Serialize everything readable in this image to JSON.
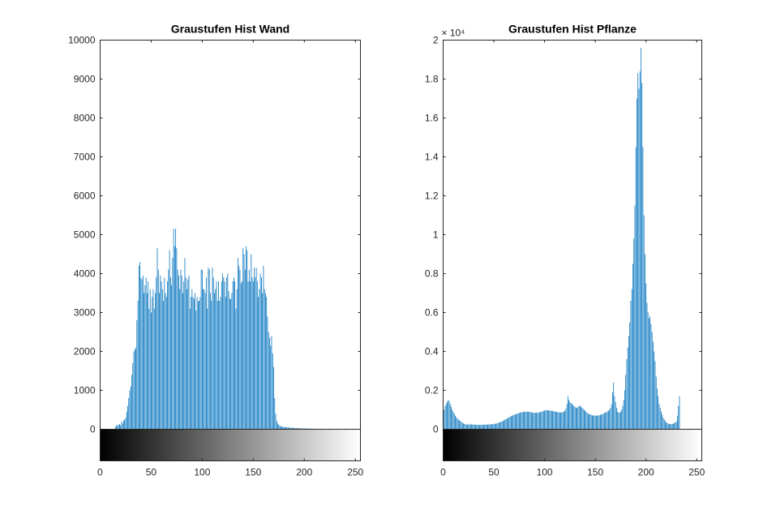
{
  "figure": {
    "background": "#ffffff",
    "bar_color": "#0072BD",
    "axis_color": "#262626"
  },
  "chart_data": [
    {
      "type": "bar",
      "title": "Graustufen Hist Wand",
      "xlabel": "",
      "ylabel": "",
      "xlim": [
        0,
        255
      ],
      "ylim": [
        0,
        10000
      ],
      "x_ticks": [
        0,
        50,
        100,
        150,
        200,
        250
      ],
      "y_ticks": [
        0,
        1000,
        2000,
        3000,
        4000,
        5000,
        6000,
        7000,
        8000,
        9000,
        10000
      ],
      "x_tick_labels": [
        "0",
        "50",
        "100",
        "150",
        "200",
        "250"
      ],
      "y_tick_labels": [
        "0",
        "1000",
        "2000",
        "3000",
        "4000",
        "5000",
        "6000",
        "7000",
        "8000",
        "9000",
        "10000"
      ],
      "exponent_label": "",
      "grid": false,
      "legend": "none",
      "grayscale_colorbar": true,
      "series": [
        {
          "x_start": 0,
          "values": [
            0,
            0,
            0,
            0,
            0,
            0,
            0,
            0,
            0,
            0,
            0,
            0,
            0,
            0,
            0,
            60,
            110,
            90,
            120,
            130,
            100,
            200,
            150,
            220,
            250,
            300,
            450,
            600,
            800,
            1000,
            1100,
            1400,
            1700,
            2000,
            2050,
            2100,
            2800,
            3300,
            4200,
            4300,
            3900,
            3850,
            3950,
            3500,
            3700,
            3900,
            3500,
            3800,
            3100,
            3600,
            3000,
            3400,
            3600,
            3100,
            3500,
            3900,
            4650,
            4100,
            3500,
            3950,
            3800,
            3600,
            3300,
            3900,
            3500,
            3400,
            3800,
            4100,
            4600,
            3900,
            3700,
            4400,
            5150,
            4700,
            5150,
            4650,
            4100,
            3950,
            3600,
            4100,
            3950,
            3500,
            3800,
            4400,
            3900,
            3600,
            3850,
            3950,
            3100,
            3400,
            3600,
            3400,
            3350,
            3500,
            3050,
            3400,
            3300,
            3300,
            3400,
            4100,
            4100,
            3600,
            3600,
            3500,
            3900,
            3100,
            4150,
            4100,
            3500,
            3300,
            4150,
            3900,
            3500,
            3600,
            3800,
            3300,
            3800,
            3300,
            3400,
            3800,
            4000,
            3900,
            3800,
            3400,
            3900,
            4000,
            3550,
            3350,
            3350,
            3500,
            3800,
            3900,
            3800,
            3100,
            3600,
            4400,
            4200,
            4100,
            3750,
            3800,
            4650,
            4500,
            4100,
            4700,
            4600,
            3800,
            4100,
            3800,
            4500,
            3900,
            3800,
            4150,
            3900,
            4150,
            3800,
            3400,
            3600,
            4000,
            3900,
            3500,
            4200,
            3600,
            3500,
            3400,
            2900,
            2500,
            2350,
            2150,
            2400,
            1950,
            1600,
            800,
            400,
            220,
            150,
            120,
            90,
            80,
            70,
            60,
            60,
            55,
            50,
            50,
            50,
            45,
            40,
            40,
            40,
            35,
            35,
            30,
            30,
            30,
            28,
            26,
            25,
            24,
            22,
            22,
            20,
            20,
            18,
            18,
            16,
            16,
            15,
            15,
            14,
            14,
            12,
            12,
            12,
            10,
            10,
            10,
            9,
            9,
            8,
            8,
            8,
            7,
            7,
            6,
            6,
            6,
            5,
            5,
            5,
            5,
            4,
            4,
            4,
            4,
            3,
            3,
            3,
            3,
            2,
            2,
            2,
            2,
            2,
            2,
            2,
            1,
            1,
            1,
            1,
            1,
            1,
            1,
            1,
            1,
            1,
            1,
            1,
            0,
            0,
            0,
            0,
            0,
            0,
            0,
            0,
            0,
            0,
            0
          ]
        }
      ]
    },
    {
      "type": "bar",
      "title": "Graustufen Hist Pflanze",
      "xlabel": "",
      "ylabel": "",
      "xlim": [
        0,
        255
      ],
      "ylim": [
        0,
        20000
      ],
      "x_ticks": [
        0,
        50,
        100,
        150,
        200,
        250
      ],
      "y_ticks": [
        0,
        2000,
        4000,
        6000,
        8000,
        10000,
        12000,
        14000,
        16000,
        18000,
        20000
      ],
      "x_tick_labels": [
        "0",
        "50",
        "100",
        "150",
        "200",
        "250"
      ],
      "y_tick_labels": [
        "0",
        "0.2",
        "0.4",
        "0.6",
        "0.8",
        "1",
        "1.2",
        "1.4",
        "1.6",
        "1.8",
        "2"
      ],
      "exponent_label": "× 10⁴",
      "grid": false,
      "legend": "none",
      "grayscale_colorbar": true,
      "series": [
        {
          "x_start": 0,
          "values": [
            800,
            1000,
            1200,
            1300,
            1400,
            1500,
            1450,
            1300,
            1150,
            1000,
            900,
            800,
            700,
            620,
            560,
            500,
            460,
            420,
            380,
            340,
            300,
            280,
            260,
            240,
            240,
            240,
            250,
            250,
            250,
            240,
            240,
            240,
            230,
            230,
            230,
            230,
            220,
            220,
            230,
            230,
            230,
            240,
            240,
            240,
            240,
            250,
            250,
            250,
            260,
            260,
            270,
            280,
            290,
            300,
            320,
            340,
            360,
            380,
            400,
            430,
            460,
            490,
            520,
            550,
            580,
            610,
            640,
            670,
            700,
            720,
            740,
            760,
            780,
            800,
            820,
            840,
            860,
            870,
            880,
            890,
            900,
            900,
            900,
            900,
            900,
            890,
            880,
            870,
            860,
            850,
            850,
            850,
            850,
            850,
            860,
            870,
            880,
            900,
            920,
            940,
            960,
            970,
            980,
            980,
            970,
            960,
            950,
            940,
            930,
            920,
            910,
            900,
            890,
            880,
            870,
            860,
            860,
            870,
            880,
            900,
            950,
            1050,
            1300,
            1700,
            1500,
            1400,
            1350,
            1300,
            1250,
            1200,
            1150,
            1100,
            1100,
            1150,
            1200,
            1200,
            1150,
            1100,
            1050,
            1000,
            950,
            900,
            850,
            800,
            780,
            760,
            740,
            720,
            700,
            700,
            700,
            700,
            700,
            710,
            720,
            740,
            760,
            780,
            800,
            830,
            860,
            890,
            920,
            950,
            1000,
            1100,
            1300,
            1900,
            2400,
            1700,
            1400,
            1100,
            900,
            850,
            850,
            900,
            1000,
            1200,
            1500,
            2000,
            2800,
            3600,
            4200,
            4800,
            5500,
            6600,
            7200,
            8500,
            9800,
            11500,
            14500,
            17000,
            18300,
            17500,
            18400,
            19600,
            17800,
            14500,
            11000,
            9000,
            7500,
            6500,
            6000,
            5700,
            5800,
            5400,
            5000,
            4500,
            4000,
            3500,
            2700,
            2100,
            1700,
            1300,
            1100,
            900,
            750,
            600,
            500,
            420,
            360,
            320,
            290,
            270,
            260,
            260,
            270,
            290,
            320,
            360,
            400,
            700,
            1200,
            1700
          ]
        }
      ]
    }
  ]
}
